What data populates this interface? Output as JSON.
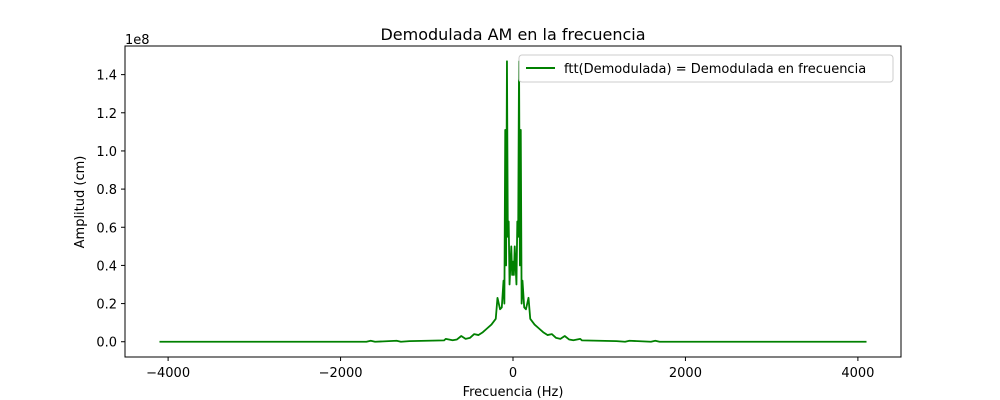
{
  "chart_data": {
    "type": "line",
    "title": "Demodulada AM en la frecuencia",
    "xlabel": "Frecuencia (Hz)",
    "ylabel": "Amplitud (cm)",
    "y_offset_label": "1e8",
    "xlim": [
      -4500,
      4500
    ],
    "ylim": [
      -0.08,
      1.55
    ],
    "y_scale_factor": 100000000,
    "x_ticks": [
      -4000,
      -2000,
      0,
      2000,
      4000
    ],
    "x_tick_labels": [
      "−4000",
      "−2000",
      "0",
      "2000",
      "4000"
    ],
    "y_ticks": [
      0.0,
      0.2,
      0.4,
      0.6,
      0.8,
      1.0,
      1.2,
      1.4
    ],
    "y_tick_labels": [
      "0.0",
      "0.2",
      "0.4",
      "0.6",
      "0.8",
      "1.0",
      "1.2",
      "1.4"
    ],
    "grid": false,
    "legend_position": "top-right",
    "series": [
      {
        "name": "ftt(Demodulada) = Demodulada en frecuencia",
        "color": "#008000",
        "x": [
          -4100,
          -1700,
          -1650,
          -1600,
          -1350,
          -1300,
          -1200,
          -1000,
          -800,
          -780,
          -700,
          -650,
          -600,
          -550,
          -500,
          -450,
          -400,
          -350,
          -300,
          -250,
          -200,
          -180,
          -150,
          -130,
          -110,
          -100,
          -90,
          -80,
          -70,
          -60,
          -50,
          -40,
          -30,
          -20,
          -10,
          0,
          10,
          20,
          30,
          40,
          50,
          60,
          70,
          80,
          90,
          100,
          110,
          130,
          150,
          180,
          200,
          250,
          300,
          350,
          400,
          450,
          500,
          550,
          600,
          650,
          700,
          780,
          800,
          1000,
          1200,
          1300,
          1350,
          1600,
          1650,
          1700,
          4100
        ],
        "y": [
          0.0,
          0.0,
          0.005,
          0.0,
          0.005,
          0.0,
          0.003,
          0.005,
          0.007,
          0.015,
          0.008,
          0.012,
          0.03,
          0.015,
          0.02,
          0.04,
          0.035,
          0.05,
          0.07,
          0.09,
          0.12,
          0.23,
          0.17,
          0.18,
          0.32,
          0.2,
          1.11,
          0.4,
          1.47,
          0.55,
          0.63,
          0.3,
          0.4,
          0.5,
          0.35,
          0.42,
          0.35,
          0.5,
          0.4,
          0.3,
          0.63,
          0.55,
          1.47,
          0.4,
          1.11,
          0.2,
          0.32,
          0.18,
          0.17,
          0.23,
          0.12,
          0.09,
          0.07,
          0.05,
          0.035,
          0.04,
          0.02,
          0.015,
          0.03,
          0.012,
          0.008,
          0.015,
          0.007,
          0.005,
          0.003,
          0.0,
          0.005,
          0.0,
          0.005,
          0.0,
          0.0
        ]
      }
    ]
  }
}
